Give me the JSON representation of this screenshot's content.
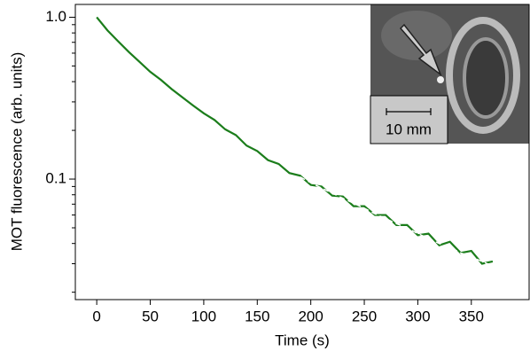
{
  "chart_data": {
    "type": "line",
    "x_label": "Time (s)",
    "y_label": "MOT fluorescence (arb. units)",
    "annotation": "10 mm",
    "log_y": true,
    "x": [
      0,
      10,
      20,
      30,
      40,
      50,
      60,
      70,
      80,
      90,
      100,
      110,
      120,
      130,
      140,
      150,
      160,
      170,
      180,
      190,
      200,
      210,
      220,
      230,
      240,
      250,
      260,
      270,
      280,
      290,
      300,
      310,
      320,
      330,
      340,
      350,
      360,
      370
    ],
    "series": [
      {
        "color": "#1b7d1b",
        "style": "solid",
        "values": [
          1.0,
          0.83,
          0.71,
          0.61,
          0.53,
          0.46,
          0.41,
          0.36,
          0.32,
          0.285,
          0.255,
          0.232,
          0.203,
          0.187,
          0.161,
          0.149,
          0.131,
          0.124,
          0.109,
          0.105,
          0.092,
          0.09,
          0.079,
          0.078,
          0.068,
          0.068,
          0.06,
          0.06,
          0.052,
          0.052,
          0.045,
          0.046,
          0.039,
          0.041,
          0.035,
          0.036,
          0.03,
          0.031
        ]
      },
      {
        "color": "#ffffff",
        "style": "dashed",
        "values": [
          null,
          null,
          null,
          null,
          null,
          null,
          null,
          null,
          null,
          null,
          null,
          null,
          null,
          null,
          null,
          null,
          null,
          null,
          null,
          0.103,
          0.095,
          0.088,
          0.082,
          0.076,
          0.071,
          0.066,
          0.061,
          0.057,
          0.053,
          0.05,
          0.046,
          0.043,
          0.04,
          0.038,
          0.035,
          0.033,
          0.031,
          0.029
        ]
      }
    ],
    "xlim": [
      -20,
      404
    ],
    "ylim": [
      0.018,
      1.2
    ],
    "xticks": [
      0,
      50,
      100,
      150,
      200,
      250,
      300,
      350
    ],
    "yticks": [
      {
        "value": 1,
        "label": "1.0"
      },
      {
        "value": 0.1,
        "label": "0.1"
      }
    ],
    "yminorticks": [
      0.02,
      0.03,
      0.04,
      0.05,
      0.06,
      0.07,
      0.08,
      0.09,
      0.2,
      0.3,
      0.4,
      0.5,
      0.6,
      0.7,
      0.8,
      0.9
    ],
    "grid": false
  }
}
